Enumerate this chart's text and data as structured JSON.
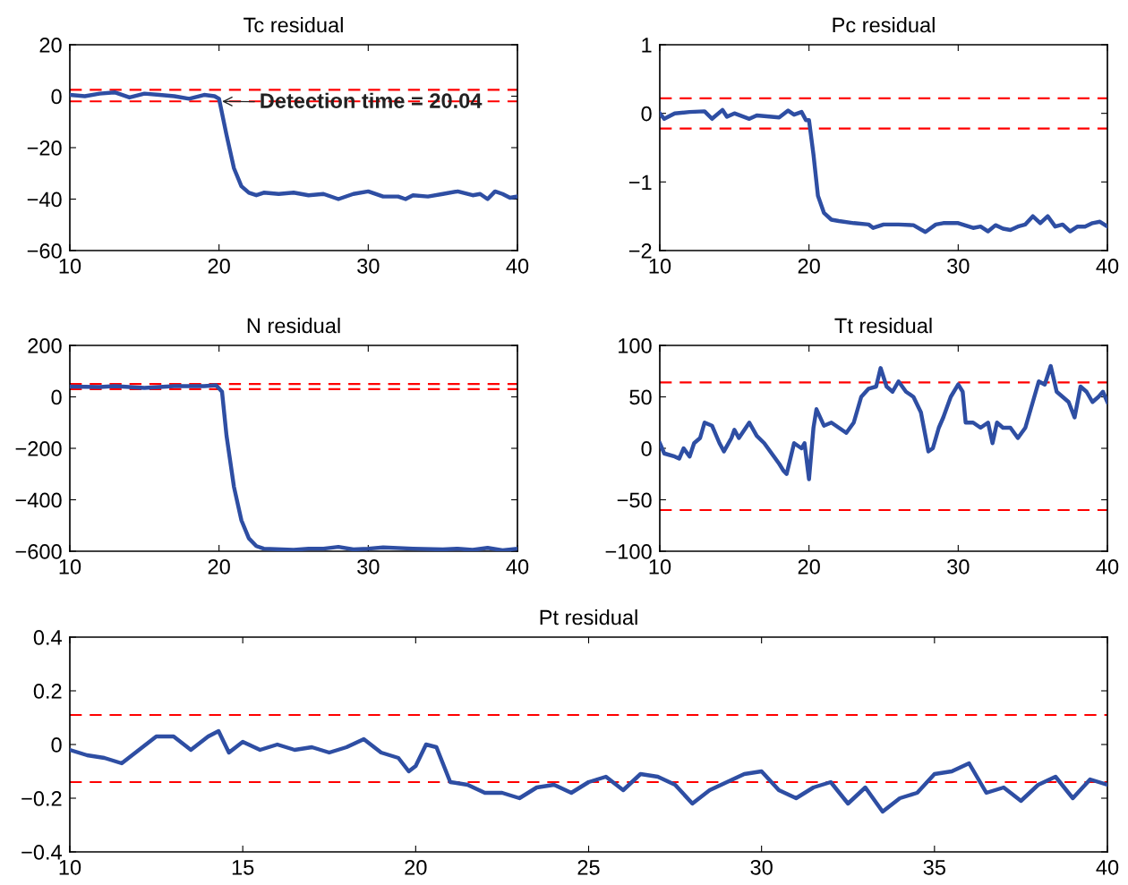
{
  "chart_data": [
    {
      "type": "line",
      "title": "Tc residual",
      "xlim": [
        10,
        40
      ],
      "xticks": [
        10,
        20,
        30,
        40
      ],
      "ylim": [
        -60,
        20
      ],
      "yticks": [
        -60,
        -40,
        -20,
        0,
        20
      ],
      "grid": false,
      "legend": false,
      "line_style": "solid",
      "marker": "none",
      "series": [
        {
          "color": "#2e4ea3",
          "x": [
            10,
            11,
            12,
            13,
            14,
            15,
            16,
            17,
            18,
            19,
            19.7,
            20,
            20.5,
            21,
            21.5,
            22,
            22.5,
            23,
            24,
            25,
            26,
            27,
            28,
            29,
            30,
            31,
            32,
            32.5,
            33,
            34,
            35,
            36,
            37,
            37.5,
            38,
            38.5,
            39,
            39.5,
            40
          ],
          "values": [
            0.5,
            0,
            1,
            1.5,
            -0.5,
            1,
            0.5,
            0,
            -1,
            0.5,
            0,
            -1,
            -15,
            -28,
            -35,
            -37.5,
            -38.5,
            -37.5,
            -38,
            -37.5,
            -38.5,
            -38,
            -40,
            -38,
            -37,
            -39,
            -39,
            -40,
            -38.5,
            -39,
            -38,
            -37,
            -38.5,
            -38,
            -40,
            -37,
            -38,
            -39.5,
            -39
          ]
        }
      ],
      "ref_lines": [
        {
          "axis": "y",
          "value": 2.5,
          "color": "#ff0000",
          "line_style": "dashed"
        },
        {
          "axis": "y",
          "value": -2,
          "color": "#ff0000",
          "line_style": "dashed"
        }
      ],
      "annotations": [
        {
          "text": "Detection time = 20.04",
          "x": 20.04,
          "y": -2
        }
      ]
    },
    {
      "type": "line",
      "title": "Pc residual",
      "xlim": [
        10,
        40
      ],
      "xticks": [
        10,
        20,
        30,
        40
      ],
      "ylim": [
        -2,
        1
      ],
      "yticks": [
        -2,
        -1,
        0,
        1
      ],
      "grid": false,
      "legend": false,
      "line_style": "solid",
      "marker": "none",
      "series": [
        {
          "color": "#2e4ea3",
          "x": [
            10,
            10.3,
            11,
            12,
            13,
            13.5,
            14.2,
            14.5,
            15,
            16,
            16.5,
            17,
            18,
            18.6,
            19,
            19.5,
            19.8,
            20,
            20.3,
            20.6,
            21,
            21.5,
            22,
            23,
            24,
            24.3,
            25,
            26,
            27,
            27.8,
            28.5,
            29,
            30,
            31,
            31.5,
            32,
            32.5,
            33,
            33.5,
            34,
            34.5,
            35,
            35.5,
            36,
            36.5,
            37,
            37.5,
            38,
            38.5,
            39,
            39.5,
            40
          ],
          "values": [
            0,
            -0.08,
            0,
            0.02,
            0.03,
            -0.08,
            0.05,
            -0.05,
            0,
            -0.08,
            -0.03,
            -0.04,
            -0.06,
            0.04,
            -0.02,
            0.02,
            -0.1,
            -0.1,
            -0.6,
            -1.2,
            -1.45,
            -1.55,
            -1.57,
            -1.6,
            -1.62,
            -1.67,
            -1.62,
            -1.62,
            -1.63,
            -1.73,
            -1.62,
            -1.6,
            -1.6,
            -1.67,
            -1.65,
            -1.72,
            -1.63,
            -1.68,
            -1.7,
            -1.65,
            -1.62,
            -1.5,
            -1.6,
            -1.5,
            -1.65,
            -1.62,
            -1.72,
            -1.65,
            -1.65,
            -1.6,
            -1.58,
            -1.65
          ]
        }
      ],
      "ref_lines": [
        {
          "axis": "y",
          "value": 0.22,
          "color": "#ff0000",
          "line_style": "dashed"
        },
        {
          "axis": "y",
          "value": -0.22,
          "color": "#ff0000",
          "line_style": "dashed"
        }
      ]
    },
    {
      "type": "line",
      "title": "N residual",
      "xlim": [
        10,
        40
      ],
      "xticks": [
        10,
        20,
        30,
        40
      ],
      "ylim": [
        -600,
        200
      ],
      "yticks": [
        -600,
        -400,
        -200,
        0,
        200
      ],
      "grid": false,
      "legend": false,
      "line_style": "solid",
      "marker": "none",
      "series": [
        {
          "color": "#2e4ea3",
          "x": [
            10,
            12,
            13,
            15,
            17,
            19,
            19.8,
            20.2,
            20.5,
            21,
            21.5,
            22,
            22.5,
            23,
            25,
            26,
            27,
            28,
            29,
            30,
            31,
            33,
            35,
            36,
            37,
            38,
            39,
            40
          ],
          "values": [
            40,
            38,
            42,
            35,
            42,
            42,
            45,
            20,
            -150,
            -350,
            -480,
            -550,
            -580,
            -590,
            -595,
            -590,
            -590,
            -583,
            -593,
            -590,
            -585,
            -590,
            -593,
            -590,
            -595,
            -587,
            -596,
            -590
          ]
        }
      ],
      "ref_lines": [
        {
          "axis": "y",
          "value": 50,
          "color": "#ff0000",
          "line_style": "dashed"
        },
        {
          "axis": "y",
          "value": 30,
          "color": "#ff0000",
          "line_style": "dashed"
        }
      ]
    },
    {
      "type": "line",
      "title": "Tt residual",
      "xlim": [
        10,
        40
      ],
      "xticks": [
        10,
        20,
        30,
        40
      ],
      "ylim": [
        -100,
        100
      ],
      "yticks": [
        -100,
        -50,
        0,
        50,
        100
      ],
      "grid": false,
      "legend": false,
      "line_style": "solid",
      "marker": "none",
      "series": [
        {
          "color": "#2e4ea3",
          "x": [
            10,
            10.3,
            11,
            11.3,
            11.6,
            12,
            12.3,
            12.7,
            13,
            13.5,
            14,
            14.3,
            14.8,
            15,
            15.3,
            16,
            16.5,
            17,
            18,
            18.3,
            18.5,
            19,
            19.5,
            19.7,
            20,
            20.3,
            20.5,
            21,
            21.5,
            22,
            22.5,
            23,
            23.5,
            24,
            24.5,
            24.8,
            25.2,
            25.6,
            26,
            26.5,
            27,
            27.5,
            28,
            28.3,
            28.7,
            29,
            29.5,
            30,
            30.3,
            30.5,
            31,
            31.5,
            32,
            32.3,
            32.6,
            33,
            33.5,
            34,
            34.5,
            35,
            35.4,
            35.8,
            36.2,
            36.6,
            37,
            37.4,
            37.8,
            38.2,
            38.6,
            39,
            39.4,
            39.7,
            40
          ],
          "values": [
            5,
            -5,
            -8,
            -10,
            0,
            -8,
            5,
            10,
            25,
            22,
            5,
            -3,
            10,
            18,
            10,
            25,
            12,
            5,
            -15,
            -22,
            -25,
            5,
            0,
            5,
            -30,
            20,
            38,
            22,
            25,
            20,
            15,
            25,
            50,
            58,
            60,
            78,
            60,
            55,
            65,
            55,
            50,
            35,
            -3,
            0,
            20,
            30,
            50,
            62,
            55,
            25,
            25,
            20,
            25,
            5,
            25,
            20,
            20,
            10,
            20,
            45,
            65,
            62,
            80,
            55,
            50,
            45,
            30,
            60,
            55,
            45,
            50,
            55,
            45
          ]
        }
      ],
      "ref_lines": [
        {
          "axis": "y",
          "value": 64,
          "color": "#ff0000",
          "line_style": "dashed"
        },
        {
          "axis": "y",
          "value": -60,
          "color": "#ff0000",
          "line_style": "dashed"
        }
      ]
    },
    {
      "type": "line",
      "title": "Pt residual",
      "xlim": [
        10,
        40
      ],
      "xticks": [
        10,
        15,
        20,
        25,
        30,
        35,
        40
      ],
      "ylim": [
        -0.4,
        0.4
      ],
      "yticks": [
        -0.4,
        -0.2,
        0,
        0.2,
        0.4
      ],
      "grid": false,
      "legend": false,
      "line_style": "solid",
      "marker": "none",
      "series": [
        {
          "color": "#2e4ea3",
          "x": [
            10,
            10.5,
            11,
            11.5,
            12,
            12.5,
            13,
            13.5,
            14,
            14.3,
            14.6,
            15,
            15.5,
            16,
            16.5,
            17,
            17.5,
            18,
            18.5,
            19,
            19.5,
            19.8,
            20,
            20.3,
            20.6,
            21,
            21.5,
            22,
            22.5,
            23,
            23.5,
            24,
            24.5,
            25,
            25.5,
            26,
            26.5,
            27,
            27.5,
            28,
            28.5,
            29,
            29.5,
            30,
            30.5,
            31,
            31.5,
            32,
            32.5,
            33,
            33.5,
            34,
            34.5,
            35,
            35.5,
            36,
            36.5,
            37,
            37.5,
            38,
            38.5,
            39,
            39.5,
            40
          ],
          "values": [
            -0.02,
            -0.04,
            -0.05,
            -0.07,
            -0.02,
            0.03,
            0.03,
            -0.02,
            0.03,
            0.05,
            -0.03,
            0.01,
            -0.02,
            0,
            -0.02,
            -0.01,
            -0.03,
            -0.01,
            0.02,
            -0.03,
            -0.05,
            -0.1,
            -0.08,
            0,
            -0.01,
            -0.14,
            -0.15,
            -0.18,
            -0.18,
            -0.2,
            -0.16,
            -0.15,
            -0.18,
            -0.14,
            -0.12,
            -0.17,
            -0.11,
            -0.12,
            -0.15,
            -0.22,
            -0.17,
            -0.14,
            -0.11,
            -0.1,
            -0.17,
            -0.2,
            -0.16,
            -0.14,
            -0.22,
            -0.16,
            -0.25,
            -0.2,
            -0.18,
            -0.11,
            -0.1,
            -0.07,
            -0.18,
            -0.16,
            -0.21,
            -0.15,
            -0.12,
            -0.2,
            -0.13,
            -0.15
          ]
        }
      ],
      "ref_lines": [
        {
          "axis": "y",
          "value": 0.11,
          "color": "#ff0000",
          "line_style": "dashed"
        },
        {
          "axis": "y",
          "value": -0.14,
          "color": "#ff0000",
          "line_style": "dashed"
        }
      ]
    }
  ]
}
